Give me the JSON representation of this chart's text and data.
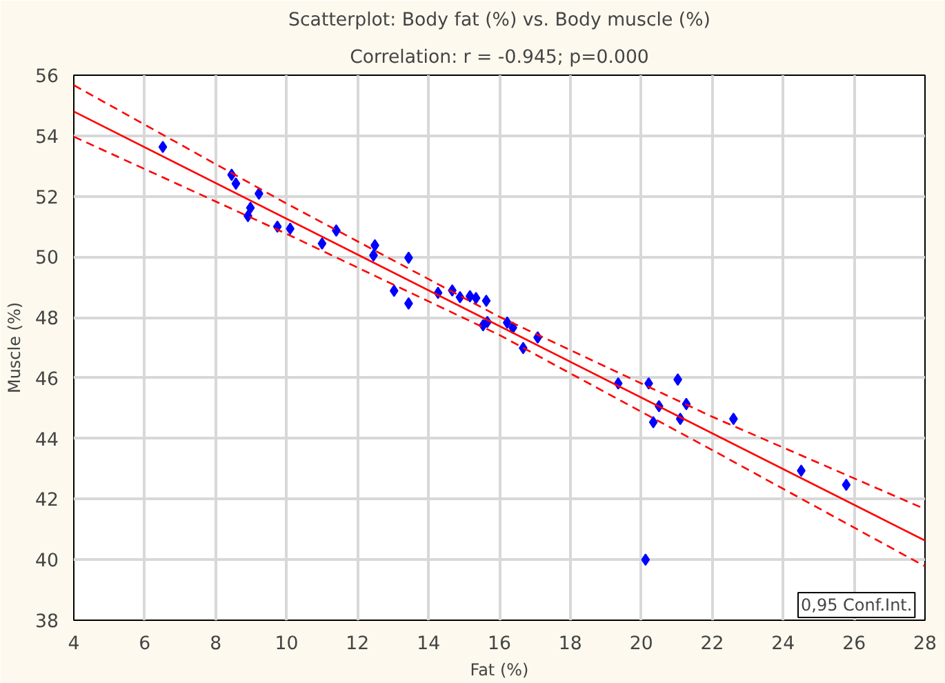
{
  "chart_data": {
    "type": "scatter",
    "title": "Scatterplot: Body fat (%) vs. Body muscle (%)",
    "subtitle": "Correlation: r = -0.945; p=0.000",
    "xlabel": "Fat (%)",
    "ylabel": "Muscle (%)",
    "xlim": [
      4,
      28
    ],
    "ylim": [
      38,
      56
    ],
    "xticks": [
      4,
      6,
      8,
      10,
      12,
      14,
      16,
      18,
      20,
      22,
      24,
      26,
      28
    ],
    "yticks": [
      38,
      40,
      42,
      44,
      46,
      48,
      50,
      52,
      54,
      56
    ],
    "grid": true,
    "marker": "diamond",
    "annotations": [
      "0,95 Conf.Int."
    ],
    "series": [
      {
        "type": "scatter",
        "color": "#0000ff",
        "x": [
          6.51,
          8.45,
          8.57,
          9.22,
          8.98,
          8.91,
          9.74,
          10.1,
          11.0,
          11.4,
          12.49,
          12.45,
          13.44,
          13.03,
          13.44,
          14.27,
          14.67,
          14.89,
          15.17,
          15.34,
          15.63,
          15.66,
          15.54,
          16.22,
          16.38,
          16.67,
          17.08,
          19.35,
          20.21,
          21.03,
          20.5,
          21.27,
          20.34,
          21.1,
          22.6,
          24.51,
          25.78,
          20.12
        ],
        "values": [
          53.63,
          52.71,
          52.42,
          52.09,
          51.62,
          51.35,
          51.0,
          50.93,
          50.44,
          50.87,
          50.38,
          50.05,
          49.97,
          48.88,
          48.46,
          48.81,
          48.89,
          48.67,
          48.7,
          48.64,
          48.55,
          47.85,
          47.74,
          47.83,
          47.66,
          46.99,
          47.34,
          45.82,
          45.82,
          45.95,
          45.07,
          45.14,
          44.54,
          44.65,
          44.65,
          42.94,
          42.47,
          40.0
        ]
      },
      {
        "type": "line",
        "color": "#ff0000",
        "line_style": "solid",
        "marker": "none",
        "x": [
          4,
          28
        ],
        "values": [
          54.8,
          40.63
        ]
      },
      {
        "type": "line",
        "color": "#ff0000",
        "line_style": "dashed",
        "marker": "none",
        "x": [
          4,
          10,
          16,
          22,
          28
        ],
        "values": [
          55.67,
          51.76,
          48.02,
          44.72,
          41.67
        ]
      },
      {
        "type": "line",
        "color": "#ff0000",
        "line_style": "dashed",
        "marker": "none",
        "x": [
          4,
          10,
          16,
          22,
          28
        ],
        "values": [
          53.97,
          50.76,
          47.42,
          43.62,
          39.78
        ]
      }
    ]
  }
}
